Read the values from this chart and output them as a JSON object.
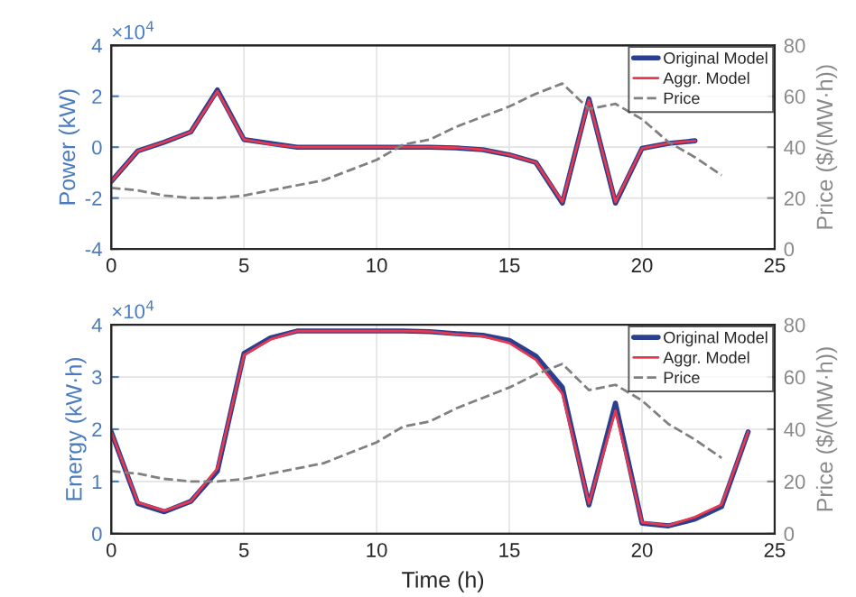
{
  "chart_data": [
    {
      "type": "line",
      "ylabel": "Power (kW)",
      "y2label": "Price ($/(MW·h))",
      "annotations": [
        "×10$^{4}$"
      ],
      "x": [
        0,
        1,
        2,
        3,
        4,
        5,
        6,
        7,
        8,
        9,
        10,
        11,
        12,
        13,
        14,
        15,
        16,
        17,
        18,
        19,
        20,
        21,
        22,
        23
      ],
      "series": [
        {
          "name": "Original Model",
          "color": "#2b3f8f",
          "values": [
            -1.35,
            -0.15,
            0.2,
            0.6,
            2.25,
            0.3,
            0.15,
            0,
            0,
            0,
            0,
            0,
            0,
            -0.03,
            -0.1,
            -0.3,
            -0.6,
            -2.2,
            1.9,
            -2.2,
            -0.05,
            0.15,
            0.25,
            null
          ]
        },
        {
          "name": "Aggr. Model",
          "color": "#e8384f",
          "values": [
            -1.35,
            -0.15,
            0.2,
            0.6,
            2.2,
            0.3,
            0.12,
            0,
            0,
            0,
            0,
            0,
            0,
            -0.02,
            -0.1,
            -0.3,
            -0.6,
            -2.15,
            1.85,
            -2.15,
            -0.05,
            0.15,
            0.25,
            null
          ]
        },
        {
          "name": "Price",
          "color": "#808080",
          "line_style": "dashed",
          "axis": "y2",
          "values": [
            24,
            23,
            21,
            20,
            20,
            21,
            23,
            25,
            27,
            31,
            35,
            41,
            43,
            48,
            52,
            56,
            61,
            65,
            55,
            57,
            51,
            42,
            36,
            29
          ]
        }
      ],
      "xlim": [
        0,
        25
      ],
      "xticks": [
        0,
        5,
        10,
        15,
        20,
        25
      ],
      "ylim": [
        -4,
        4
      ],
      "yticks": [
        -4,
        -2,
        0,
        2,
        4
      ],
      "y2lim": [
        0,
        80
      ],
      "y2ticks": [
        0,
        20,
        40,
        60,
        80
      ],
      "grid": true,
      "legend": "top right"
    },
    {
      "type": "line",
      "xlabel": "Time (h)",
      "ylabel": "Energy (kW·h)",
      "y2label": "Price ($/(MW·h))",
      "annotations": [
        "×10$^{4}$"
      ],
      "x": [
        0,
        1,
        2,
        3,
        4,
        5,
        6,
        7,
        8,
        9,
        10,
        11,
        12,
        13,
        14,
        15,
        16,
        17,
        18,
        19,
        20,
        21,
        22,
        23,
        24
      ],
      "series": [
        {
          "name": "Original Model",
          "color": "#2b3f8f",
          "values": [
            1.95,
            0.58,
            0.42,
            0.62,
            1.2,
            3.45,
            3.75,
            3.88,
            3.88,
            3.88,
            3.88,
            3.88,
            3.87,
            3.83,
            3.8,
            3.7,
            3.4,
            2.8,
            0.55,
            2.5,
            0.2,
            0.15,
            0.28,
            0.52,
            1.95
          ]
        },
        {
          "name": "Aggr. Model",
          "color": "#e8384f",
          "values": [
            1.95,
            0.6,
            0.44,
            0.62,
            1.25,
            3.42,
            3.72,
            3.88,
            3.88,
            3.88,
            3.88,
            3.88,
            3.87,
            3.82,
            3.78,
            3.65,
            3.33,
            2.68,
            0.58,
            2.35,
            0.22,
            0.16,
            0.32,
            0.56,
            1.95
          ]
        },
        {
          "name": "Price",
          "color": "#808080",
          "line_style": "dashed",
          "axis": "y2",
          "x": [
            0,
            1,
            2,
            3,
            4,
            5,
            6,
            7,
            8,
            9,
            10,
            11,
            12,
            13,
            14,
            15,
            16,
            17,
            18,
            19,
            20,
            21,
            22,
            23
          ],
          "values": [
            24,
            23,
            21,
            20,
            20,
            21,
            23,
            25,
            27,
            31,
            35,
            41,
            43,
            48,
            52,
            56,
            61,
            65,
            55,
            57,
            51,
            42,
            36,
            29
          ]
        }
      ],
      "xlim": [
        0,
        25
      ],
      "xticks": [
        0,
        5,
        10,
        15,
        20,
        25
      ],
      "ylim": [
        0,
        4
      ],
      "yticks": [
        0,
        1,
        2,
        3,
        4
      ],
      "y2lim": [
        0,
        80
      ],
      "y2ticks": [
        0,
        20,
        40,
        60,
        80
      ],
      "grid": true,
      "legend": "top right"
    }
  ]
}
